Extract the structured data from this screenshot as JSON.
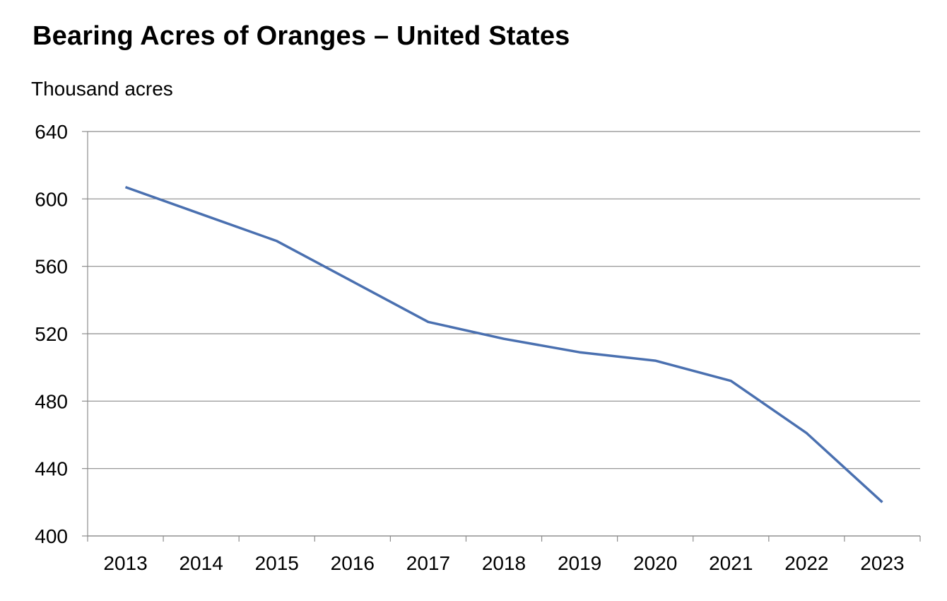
{
  "chart_data": {
    "type": "line",
    "title": "Bearing Acres of Oranges – United States",
    "ylabel": "Thousand acres",
    "xlabel": "",
    "categories": [
      "2013",
      "2014",
      "2015",
      "2016",
      "2017",
      "2018",
      "2019",
      "2020",
      "2021",
      "2022",
      "2023"
    ],
    "series": [
      {
        "name": "Bearing acres",
        "values": [
          607,
          591,
          575,
          551,
          527,
          517,
          509,
          504,
          492,
          461,
          420
        ]
      }
    ],
    "ylim": [
      400,
      640
    ],
    "yticks": [
      400,
      440,
      480,
      520,
      560,
      600,
      640
    ],
    "grid": true,
    "legend": "none"
  },
  "colors": {
    "series_line": "#4a70b0",
    "gridline": "#8c8c8c",
    "axis": "#8c8c8c"
  }
}
